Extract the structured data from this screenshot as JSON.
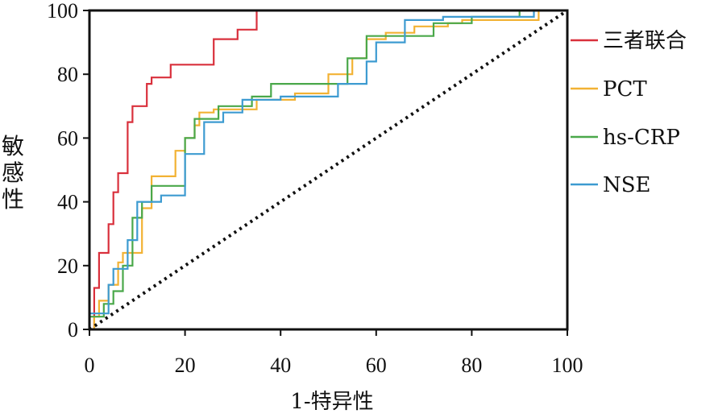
{
  "chart_data": {
    "type": "line",
    "title": "",
    "xlabel": "1-特异性",
    "ylabel": "敏感性",
    "xlim": [
      0,
      100
    ],
    "ylim": [
      0,
      100
    ],
    "xticks": [
      "0",
      "20",
      "40",
      "60",
      "80",
      "100"
    ],
    "yticks": [
      "0",
      "20",
      "40",
      "60",
      "80",
      "100"
    ],
    "grid": false,
    "legend_position": "right",
    "series": [
      {
        "name": "三者联合",
        "color": "#d9303c",
        "points": [
          [
            0,
            0
          ],
          [
            1,
            0
          ],
          [
            1,
            13
          ],
          [
            2,
            13
          ],
          [
            2,
            24
          ],
          [
            4,
            24
          ],
          [
            4,
            33
          ],
          [
            5,
            33
          ],
          [
            5,
            43
          ],
          [
            6,
            43
          ],
          [
            6,
            49
          ],
          [
            8,
            49
          ],
          [
            8,
            65
          ],
          [
            9,
            65
          ],
          [
            9,
            70
          ],
          [
            12,
            70
          ],
          [
            12,
            77
          ],
          [
            13,
            77
          ],
          [
            13,
            79
          ],
          [
            17,
            79
          ],
          [
            17,
            83
          ],
          [
            26,
            83
          ],
          [
            26,
            91
          ],
          [
            31,
            91
          ],
          [
            31,
            94
          ],
          [
            35,
            94
          ],
          [
            35,
            100
          ],
          [
            57,
            100
          ]
        ]
      },
      {
        "name": "PCT",
        "color": "#f2b234",
        "points": [
          [
            0,
            0
          ],
          [
            1,
            0
          ],
          [
            1,
            4
          ],
          [
            2,
            4
          ],
          [
            2,
            9
          ],
          [
            4,
            9
          ],
          [
            4,
            14
          ],
          [
            6,
            14
          ],
          [
            6,
            21
          ],
          [
            7,
            21
          ],
          [
            7,
            24
          ],
          [
            11,
            24
          ],
          [
            11,
            38
          ],
          [
            13,
            38
          ],
          [
            13,
            48
          ],
          [
            18,
            48
          ],
          [
            18,
            56
          ],
          [
            20,
            56
          ],
          [
            20,
            60
          ],
          [
            22,
            60
          ],
          [
            22,
            64
          ],
          [
            23,
            64
          ],
          [
            23,
            68
          ],
          [
            26,
            68
          ],
          [
            26,
            69
          ],
          [
            35,
            69
          ],
          [
            35,
            72
          ],
          [
            43,
            72
          ],
          [
            43,
            74
          ],
          [
            50,
            74
          ],
          [
            50,
            80
          ],
          [
            55,
            80
          ],
          [
            55,
            85
          ],
          [
            58,
            85
          ],
          [
            58,
            91
          ],
          [
            62,
            91
          ],
          [
            62,
            93
          ],
          [
            68,
            93
          ],
          [
            68,
            95
          ],
          [
            75,
            95
          ],
          [
            75,
            96
          ],
          [
            78,
            96
          ],
          [
            78,
            97
          ],
          [
            94,
            97
          ],
          [
            94,
            100
          ]
        ]
      },
      {
        "name": "hs-CRP",
        "color": "#4aa84a",
        "points": [
          [
            0,
            0
          ],
          [
            0,
            4
          ],
          [
            3,
            4
          ],
          [
            3,
            8
          ],
          [
            5,
            8
          ],
          [
            5,
            12
          ],
          [
            7,
            12
          ],
          [
            7,
            20
          ],
          [
            9,
            20
          ],
          [
            9,
            35
          ],
          [
            11,
            35
          ],
          [
            11,
            40
          ],
          [
            13,
            40
          ],
          [
            13,
            45
          ],
          [
            20,
            45
          ],
          [
            20,
            60
          ],
          [
            22,
            60
          ],
          [
            22,
            66
          ],
          [
            27,
            66
          ],
          [
            27,
            70
          ],
          [
            34,
            70
          ],
          [
            34,
            73
          ],
          [
            38,
            73
          ],
          [
            38,
            77
          ],
          [
            54,
            77
          ],
          [
            54,
            85
          ],
          [
            58,
            85
          ],
          [
            58,
            92
          ],
          [
            72,
            92
          ],
          [
            72,
            96
          ],
          [
            80,
            96
          ],
          [
            80,
            98
          ],
          [
            90,
            98
          ],
          [
            90,
            100
          ]
        ]
      },
      {
        "name": "NSE",
        "color": "#3d9bd1",
        "points": [
          [
            0,
            0
          ],
          [
            0,
            5
          ],
          [
            4,
            5
          ],
          [
            4,
            14
          ],
          [
            5,
            14
          ],
          [
            5,
            19
          ],
          [
            8,
            19
          ],
          [
            8,
            28
          ],
          [
            10,
            28
          ],
          [
            10,
            40
          ],
          [
            15,
            40
          ],
          [
            15,
            42
          ],
          [
            20,
            42
          ],
          [
            20,
            55
          ],
          [
            24,
            55
          ],
          [
            24,
            65
          ],
          [
            28,
            65
          ],
          [
            28,
            68
          ],
          [
            32,
            68
          ],
          [
            32,
            72
          ],
          [
            40,
            72
          ],
          [
            40,
            73
          ],
          [
            52,
            73
          ],
          [
            52,
            77
          ],
          [
            58,
            77
          ],
          [
            58,
            84
          ],
          [
            60,
            84
          ],
          [
            60,
            90
          ],
          [
            66,
            90
          ],
          [
            66,
            97
          ],
          [
            74,
            97
          ],
          [
            74,
            98
          ],
          [
            93,
            98
          ],
          [
            93,
            100
          ]
        ]
      },
      {
        "name": "",
        "color": "#111111",
        "style": "dotted",
        "points": [
          [
            0,
            0
          ],
          [
            100,
            100
          ]
        ]
      }
    ]
  }
}
